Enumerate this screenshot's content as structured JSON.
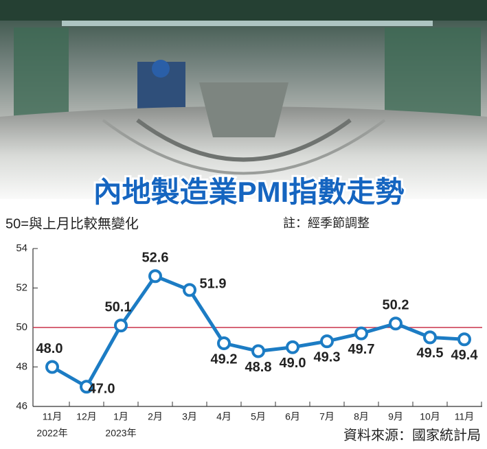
{
  "chart_data": {
    "type": "line",
    "title": "內地製造業PMI指數走勢",
    "subtitle": "50=與上月比較無變化",
    "note": "註：經季節調整",
    "source": "資料來源：國家統計局",
    "categories": [
      "11月",
      "12月",
      "1月",
      "2月",
      "3月",
      "4月",
      "5月",
      "6月",
      "7月",
      "8月",
      "9月",
      "10月",
      "11月"
    ],
    "year_labels": [
      "2022年",
      null,
      "2023年",
      null,
      null,
      null,
      null,
      null,
      null,
      null,
      null,
      null,
      null
    ],
    "values": [
      48.0,
      47.0,
      50.1,
      52.6,
      51.9,
      49.2,
      48.8,
      49.0,
      49.3,
      49.7,
      50.2,
      49.5,
      49.4
    ],
    "value_labels": [
      "48.0",
      "47.0",
      "50.1",
      "52.6",
      "51.9",
      "49.2",
      "48.8",
      "49.0",
      "49.3",
      "49.7",
      "50.2",
      "49.5",
      "49.4"
    ],
    "color": "#1c7cc4",
    "reference_line": 50,
    "reference_color": "#c8324a",
    "ylim": [
      46,
      54
    ],
    "yticks": [
      46,
      48,
      50,
      52,
      54
    ]
  }
}
